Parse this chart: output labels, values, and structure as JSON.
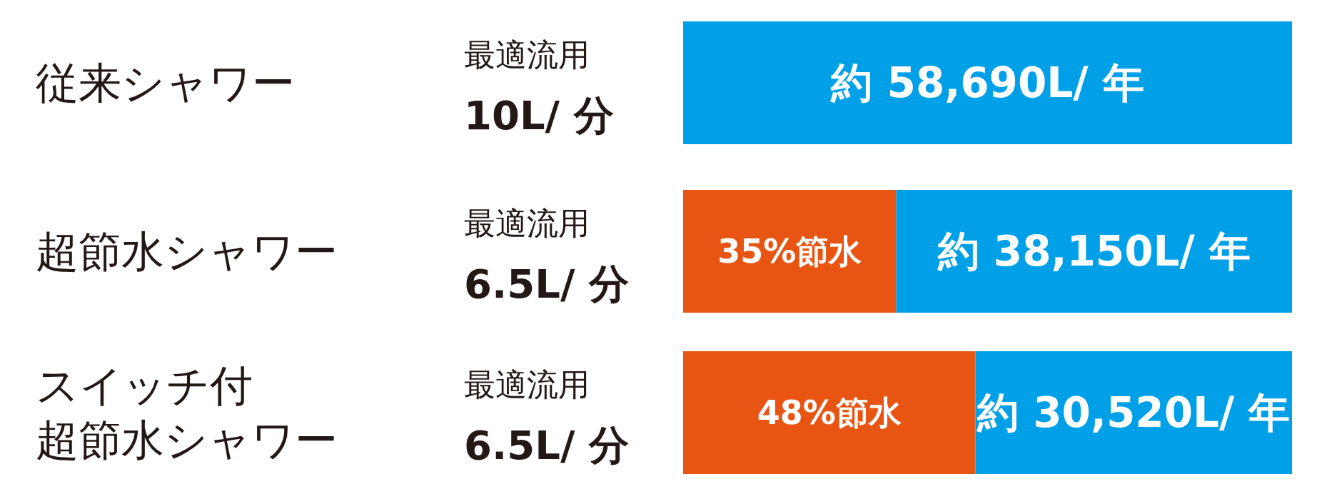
{
  "chart_data": {
    "type": "bar",
    "orientation": "horizontal",
    "stacked": true,
    "categories": [
      "従来シャワー",
      "超節水シャワー",
      "スイッチ付超節水シャワー"
    ],
    "xlim": [
      0,
      58690
    ],
    "tick_labels": false,
    "series": [
      {
        "color": "#e85513",
        "values": [
          null,
          20540,
          28170
        ]
      },
      {
        "color": "#00a0e9",
        "values": [
          58690,
          38150,
          30520
        ],
        "value_labels": [
          "約 58,690L/ 年",
          "約 38,150L/ 年",
          "約 30,520L/ 年"
        ]
      }
    ],
    "annotations": [
      "最適流用\n10L/ 分",
      "最適流用\n6.5L/ 分",
      "最適流用\n6.5L/ 分",
      "35%節水",
      "48%節水"
    ]
  }
}
